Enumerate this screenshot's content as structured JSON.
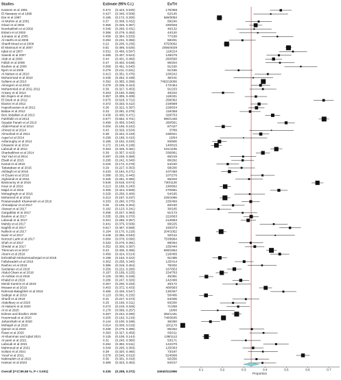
{
  "chart_data": {
    "type": "forest",
    "header": {
      "study": "Studies",
      "estimate": "Estimate (95% C.I.)",
      "events": "Ev/Trt"
    },
    "x_label": "Proportion",
    "xlim": [
      0,
      0.75
    ],
    "xticks": [
      0.1,
      0.2,
      0.3,
      0.4,
      0.5,
      0.6,
      0.7
    ],
    "color": "#111111",
    "ref_color": "#e06060",
    "diamond_color": "#7fd0d6",
    "overall": {
      "name": "Overall (I^2=99.58 %, P < 0.001)",
      "est": 0.335,
      "lo": 0.298,
      "hi": 0.372,
      "ci": "(0.298, 0.372)",
      "n": "34940/112996"
    },
    "studies": [
      {
        "name": "Kassem et al 1991",
        "est": 0.474,
        "lo": 0.423,
        "hi": 0.525,
        "ci": "(0.423, 0.525)",
        "n": "176/369"
      },
      {
        "name": "El-Nawawy et al 1996",
        "est": 0.427,
        "lo": 0.346,
        "hi": 0.508,
        "ci": "(0.346, 0.508)",
        "n": "62/145"
      },
      {
        "name": "Dar et al 1997",
        "est": 0.186,
        "lo": 0.172,
        "hi": 0.2,
        "ci": "(0.172, 0.200)",
        "n": "568/3053"
      },
      {
        "name": "Al-Muhim et al 2001",
        "est": 0.37,
        "lo": 0.308,
        "hi": 0.432,
        "ci": "(0.308, 0.432)",
        "n": "89/240"
      },
      {
        "name": "Ghazi et al 2002",
        "est": 0.356,
        "lo": 0.326,
        "hi": 0.387,
        "ci": "(0.326, 0.387)",
        "n": "330/926"
      },
      {
        "name": "Noorbakhsh et al 2002",
        "est": 0.349,
        "lo": 0.266,
        "hi": 0.431,
        "ci": "(0.266, 0.431)",
        "n": "46/132"
      },
      {
        "name": "Eslami et al 2003",
        "est": 0.366,
        "lo": 0.279,
        "hi": 0.453,
        "ci": "(0.279, 0.453)",
        "n": "44/120"
      },
      {
        "name": "Jumaian et al 2005",
        "est": 0.458,
        "lo": 0.384,
        "hi": 0.533,
        "ci": "(0.384, 0.533)",
        "n": "77/168"
      },
      {
        "name": "Al-Harthi et al 2006",
        "est": 0.294,
        "lo": 0.231,
        "hi": 0.356,
        "ci": "(0.231, 0.356)",
        "n": "59/201"
      },
      {
        "name": "Sharifi Mood et al 2006",
        "est": 0.22,
        "lo": 0.205,
        "hi": 0.235,
        "ci": "(0.205, 0.235)",
        "n": "675/3062"
      },
      {
        "name": "El Mansouri et al 2007",
        "est": 0.51,
        "lo": 0.495,
        "hi": 0.526,
        "ci": "(0.495, 0.526)",
        "n": "2056/4029"
      },
      {
        "name": "Iqbal et al 2007",
        "est": 0.531,
        "lo": 0.466,
        "hi": 0.597,
        "ci": "(0.466, 0.597)",
        "n": "119/224"
      },
      {
        "name": "Saeedi et al 2007",
        "est": 0.465,
        "lo": 0.407,
        "hi": 0.524,
        "ci": "(0.407, 0.524)",
        "n": "128/275"
      },
      {
        "name": "Abdi et al 2008",
        "est": 0.44,
        "lo": 0.401,
        "hi": 0.48,
        "ci": "(0.401, 0.480)",
        "n": "260/590"
      },
      {
        "name": "Fallah et al 2008",
        "est": 0.47,
        "lo": 0.402,
        "hi": 0.538,
        "ci": "(0.402, 0.538)",
        "n": "96/204"
      },
      {
        "name": "Ibrahim et al 2008",
        "est": 0.568,
        "lo": 0.491,
        "hi": 0.645,
        "ci": "(0.491, 0.645)",
        "n": "91/160"
      },
      {
        "name": "Njem et al 2009",
        "est": 0.276,
        "lo": 0.211,
        "hi": 0.341,
        "ci": "(0.211, 0.341)",
        "n": "51/185"
      },
      {
        "name": "Al-Nahari et al 2010",
        "est": 0.413,
        "lo": 0.351,
        "hi": 0.476,
        "ci": "(0.351, 0.476)",
        "n": "100/242"
      },
      {
        "name": "Mohammad et al 2010",
        "est": 0.345,
        "lo": 0.252,
        "hi": 0.438,
        "ci": "(0.252, 0.438)",
        "n": "35/101"
      },
      {
        "name": "Sellami et al 2010",
        "est": 0.392,
        "lo": 0.385,
        "hi": 0.399,
        "ci": "(0.385, 0.399)",
        "n": "7482/19066"
      },
      {
        "name": "Almogren et al 2010",
        "est": 0.379,
        "lo": 0.335,
        "hi": 0.424,
        "ci": "(0.335, 0.424)",
        "n": "172/454"
      },
      {
        "name": "Mohammed et al 2011 2011",
        "est": 0.39,
        "lo": 0.327,
        "hi": 0.453,
        "ci": "(0.327, 0.453)",
        "n": "91/233"
      },
      {
        "name": "Ansary et al 2012",
        "est": 0.203,
        "lo": 0.15,
        "hi": 0.256,
        "ci": "(0.150, 0.256)",
        "n": "45/222"
      },
      {
        "name": "Bin Dajem et al 2012",
        "est": 0.357,
        "lo": 0.305,
        "hi": 0.409,
        "ci": "(0.305, 0.409)",
        "n": "118/331"
      },
      {
        "name": "El Deeb et al 2012",
        "est": 0.675,
        "lo": 0.628,
        "hi": 0.722,
        "ci": "(0.628, 0.722)",
        "n": "258/382"
      },
      {
        "name": "Elamin et al 2012",
        "est": 0.372,
        "lo": 0.333,
        "hi": 0.412,
        "ci": "(0.333, 0.412)",
        "n": "219/589"
      },
      {
        "name": "Hapozlooeian et al 2012",
        "est": 0.36,
        "lo": 0.322,
        "hi": 0.397,
        "ci": "(0.322, 0.397)",
        "n": "228/634"
      },
      {
        "name": "Babae et al 2012",
        "est": 0.33,
        "lo": 0.281,
        "hi": 0.379,
        "ci": "(0.281, 0.379)",
        "n": "118/358"
      },
      {
        "name": "Ben Abdallah et al 2013",
        "est": 0.436,
        "lo": 0.4,
        "hi": 0.471,
        "ci": "(0.400, 0.471)",
        "n": "328/753"
      },
      {
        "name": "Fakhfakh et al 2013",
        "est": 0.677,
        "lo": 0.652,
        "hi": 0.701,
        "ci": "(0.652, 0.701)",
        "n": "980/1448"
      },
      {
        "name": "Siyadat Panah et al 2013",
        "est": 0.499,
        "lo": 0.458,
        "hi": 0.54,
        "ci": "(0.458, 0.540)",
        "n": "280/561"
      },
      {
        "name": "Abdel-Raouf et al 2014",
        "est": 0.204,
        "lo": 0.165,
        "hi": 0.242,
        "ci": "(0.165, 0.242)",
        "n": "87/427"
      },
      {
        "name": "Ahmed et al 2014",
        "est": 0.43,
        "lo": 0.326,
        "hi": 0.534,
        "ci": "(0.326, 0.534)",
        "n": "37/86"
      },
      {
        "name": "Almushait et al 2014",
        "est": 0.38,
        "lo": 0.342,
        "hi": 0.419,
        "ci": "(0.342, 0.419)",
        "n": "236/621"
      },
      {
        "name": "Aqeel et al 2014",
        "est": 0.299,
        "lo": 0.188,
        "hi": 0.41,
        "ci": "(0.188, 0.410)",
        "n": "19/64"
      },
      {
        "name": "Asfaroughy et al 2014",
        "est": 0.186,
        "lo": 0.152,
        "hi": 0.22,
        "ci": "(0.152, 0.220)",
        "n": "93/500"
      },
      {
        "name": "Ghasemi et al 2014",
        "est": 0.172,
        "lo": 0.146,
        "hi": 0.198,
        "ci": "(0.146, 0.198)",
        "n": "140/815"
      },
      {
        "name": "Laboudi et al 2014",
        "est": 0.453,
        "lo": 0.425,
        "hi": 0.481,
        "ci": "(0.425, 0.481)",
        "n": "541/1195"
      },
      {
        "name": "Sharbatkhori et al 2014",
        "est": 0.39,
        "lo": 0.357,
        "hi": 0.423,
        "ci": "(0.357, 0.423)",
        "n": "336/861"
      },
      {
        "name": "Yad Yad et al 2014",
        "est": 0.297,
        "lo": 0.236,
        "hi": 0.358,
        "ci": "(0.236, 0.358)",
        "n": "65/219"
      },
      {
        "name": "Elsafi et al 2015",
        "est": 0.295,
        "lo": 0.242,
        "hi": 0.348,
        "ci": "(0.242, 0.348)",
        "n": "86/292"
      },
      {
        "name": "Kamal et al 2015",
        "est": 0.225,
        "lo": 0.172,
        "hi": 0.278,
        "ci": "(0.172, 0.278)",
        "n": "54/240"
      },
      {
        "name": "Tabatabaei et al 2015",
        "est": 0.29,
        "lo": 0.227,
        "hi": 0.353,
        "ci": "(0.227, 0.353)",
        "n": "58/200"
      },
      {
        "name": "Akhlaghi et al 2016",
        "est": 0.233,
        "lo": 0.194,
        "hi": 0.271,
        "ci": "(0.194, 0.271)",
        "n": "107/460"
      },
      {
        "name": "Al-Eryani et al 2016",
        "est": 0.388,
        "lo": 0.331,
        "hi": 0.445,
        "ci": "(0.331, 0.445)",
        "n": "107/276"
      },
      {
        "name": "Alghamdi et al 2016",
        "est": 0.325,
        "lo": 0.261,
        "hi": 0.39,
        "ci": "(0.261, 0.390)",
        "n": "66/203"
      },
      {
        "name": "Bassoumy et al 2016",
        "est": 0.646,
        "lo": 0.618,
        "hi": 0.674,
        "ci": "(0.618, 0.674)",
        "n": "730/1130"
      },
      {
        "name": "Iman et al 2016",
        "est": 0.213,
        "lo": 0.186,
        "hi": 0.24,
        "ci": "(0.186, 0.240)",
        "n": "190/892"
      },
      {
        "name": "Majid et al 2016",
        "est": 0.465,
        "lo": 0.424,
        "hi": 0.506,
        "ci": "(0.424, 0.506)",
        "n": "270/581"
      },
      {
        "name": "Mohaghegh et al 2016",
        "est": 0.328,
        "lo": 0.256,
        "hi": 0.4,
        "ci": "(0.256, 0.400)",
        "n": "54/165"
      },
      {
        "name": "Mohamed et al 2016",
        "est": 0.212,
        "lo": 0.187,
        "hi": 0.237,
        "ci": "(0.187, 0.237)",
        "n": "226/1066"
      },
      {
        "name": "Rostamzadeh Khameneh et al 2016",
        "est": 0.333,
        "lo": 0.29,
        "hi": 0.375,
        "ci": "(0.290, 0.375)",
        "n": "155/466"
      },
      {
        "name": "Ahmadpour et al 2017",
        "est": 0.25,
        "lo": 0.196,
        "hi": 0.304,
        "ci": "(0.196, 0.304)",
        "n": "60/240"
      },
      {
        "name": "Alanazi et al 2017",
        "est": 0.182,
        "lo": 0.123,
        "hi": 0.241,
        "ci": "(0.123, 0.241)",
        "n": "30/165"
      },
      {
        "name": "Gargabbai et al 2017",
        "est": 0.295,
        "lo": 0.227,
        "hi": 0.363,
        "ci": "(0.227, 0.363)",
        "n": "51/173"
      },
      {
        "name": "Ibrahim et al 2017",
        "est": 0.335,
        "lo": 0.299,
        "hi": 0.37,
        "ci": "(0.299, 0.370)",
        "n": "222/663"
      },
      {
        "name": "Laboudi et al 2017",
        "est": 0.321,
        "lo": 0.286,
        "hi": 0.357,
        "ci": "(0.286, 0.357)",
        "n": "213/663"
      },
      {
        "name": "Mahdy et al 2017",
        "est": 0.441,
        "lo": 0.375,
        "hi": 0.506,
        "ci": "(0.375, 0.506)",
        "n": "99/225"
      },
      {
        "name": "Naghili et al 2017",
        "est": 0.517,
        "lo": 0.467,
        "hi": 0.568,
        "ci": "(0.467, 0.568)",
        "n": "193/373"
      },
      {
        "name": "Nallock et al 2017",
        "est": 0.194,
        "lo": 0.17,
        "hi": 0.218,
        "ci": "(0.170, 0.218)",
        "n": "204/1052"
      },
      {
        "name": "Nazir et al 2017",
        "est": 0.448,
        "lo": 0.356,
        "hi": 0.54,
        "ci": "(0.356, 0.540)",
        "n": "50/112"
      },
      {
        "name": "Noroozi Larki et al 2017",
        "est": 0.084,
        "lo": 0.078,
        "hi": 0.09,
        "ci": "(0.078, 0.090)",
        "n": "753/8964"
      },
      {
        "name": "Shah et al 2017",
        "est": 0.333,
        "lo": 0.276,
        "hi": 0.391,
        "ci": "(0.276, 0.391)",
        "n": "88/264"
      },
      {
        "name": "Shirdel et al 2017",
        "est": 0.352,
        "lo": 0.306,
        "hi": 0.397,
        "ci": "(0.306, 0.397)",
        "n": "155/440"
      },
      {
        "name": "Tlemcani et al 2017",
        "est": 0.43,
        "lo": 0.406,
        "hi": 0.455,
        "ci": "(0.406, 0.455)",
        "n": "669/1554"
      },
      {
        "name": "Aleem et al 2018",
        "est": 0.469,
        "lo": 0.424,
        "hi": 0.514,
        "ci": "(0.424, 0.514)",
        "n": "218/465"
      },
      {
        "name": "Eshrakhah Mohammadnejad et al 2018",
        "est": 0.188,
        "lo": 0.153,
        "hi": 0.222,
        "ci": "(0.153, 0.222)",
        "n": "91/485"
      },
      {
        "name": "Fallahzadeh et al 2018",
        "est": 0.302,
        "lo": 0.258,
        "hi": 0.346,
        "ci": "(0.258, 0.346)",
        "n": "125/414"
      },
      {
        "name": "Rashno et al 2018",
        "est": 0.386,
        "lo": 0.318,
        "hi": 0.454,
        "ci": "(0.318, 0.454)",
        "n": "78/202"
      },
      {
        "name": "Sardarian et al 2018",
        "est": 0.256,
        "lo": 0.222,
        "hi": 0.29,
        "ci": "(0.222, 0.290)",
        "n": "167/653"
      },
      {
        "name": "Abdul-Ghani et al 2019",
        "est": 0.197,
        "lo": 0.169,
        "hi": 0.225,
        "ci": "(0.169, 0.225)",
        "n": "154/783"
      },
      {
        "name": "Al-Ashkar et al 2019",
        "est": 0.125,
        "lo": 0.091,
        "hi": 0.158,
        "ci": "(0.091, 0.158)",
        "n": "45/361"
      },
      {
        "name": "Khalaf et al 2019",
        "est": 0.286,
        "lo": 0.247,
        "hi": 0.326,
        "ci": "(0.247, 0.326)",
        "n": "142/496"
      },
      {
        "name": "Meridi Kamimi et al 2019",
        "est": 0.267,
        "lo": 0.2,
        "hi": 0.333,
        "ci": "(0.200, 0.333)",
        "n": "46/172"
      },
      {
        "name": "Mosawi et al 2019",
        "est": 0.403,
        "lo": 0.372,
        "hi": 0.433,
        "ci": "(0.372, 0.433)",
        "n": "400/993"
      },
      {
        "name": "Rahmati-Balaghleh et al 2019",
        "est": 0.486,
        "lo": 0.426,
        "hi": 0.547,
        "ci": "(0.426, 0.547)",
        "n": "130/267"
      },
      {
        "name": "Sadiqui et al 2019",
        "est": 0.123,
        "lo": 0.091,
        "hi": 0.155,
        "ci": "(0.091, 0.155)",
        "n": "50/406"
      },
      {
        "name": "Sharifi et al 2019",
        "est": 0.31,
        "lo": 0.247,
        "hi": 0.373,
        "ci": "(0.247, 0.373)",
        "n": "64/206"
      },
      {
        "name": "Abdelbary et al 2020",
        "est": 0.25,
        "lo": 0.189,
        "hi": 0.311,
        "ci": "(0.189, 0.311)",
        "n": "50/200"
      },
      {
        "name": "Al-Hakami et al 2020",
        "est": 0.274,
        "lo": 0.219,
        "hi": 0.329,
        "ci": "(0.219, 0.329)",
        "n": "71/259"
      },
      {
        "name": "Al et al 2020",
        "est": 0.178,
        "lo": 0.099,
        "hi": 0.257,
        "ci": "(0.099, 0.257)",
        "n": "16/90"
      },
      {
        "name": "Edrees and Ibrahim 2020",
        "est": 0.267,
        "lo": 0.244,
        "hi": 0.29,
        "ci": "(0.244, 0.290)",
        "n": "382/1431"
      },
      {
        "name": "Hoummadi et al 2020",
        "est": 0.205,
        "lo": 0.192,
        "hi": 0.218,
        "ci": "(0.192, 0.218)",
        "n": "748/3645"
      },
      {
        "name": "Jahanshahi et al 2020",
        "est": 0.144,
        "lo": 0.1,
        "hi": 0.189,
        "ci": "(0.100, 0.189)",
        "n": "36/250"
      },
      {
        "name": "Mohajeli et al 2020",
        "est": 0.014,
        "lo": 0.008,
        "hi": 0.019,
        "ci": "(0.008, 0.019)",
        "n": "16/1170"
      },
      {
        "name": "Qamer et al 2020",
        "est": 0.338,
        "lo": 0.279,
        "hi": 0.396,
        "ci": "(0.279, 0.396)",
        "n": "85/252"
      },
      {
        "name": "Rassi et al 2020",
        "est": 0.393,
        "lo": 0.327,
        "hi": 0.459,
        "ci": "(0.327, 0.459)",
        "n": "83/211"
      },
      {
        "name": "Al-shamman and Iqbal 2021",
        "est": 0.125,
        "lo": 0.106,
        "hi": 0.144,
        "ci": "(0.106, 0.144)",
        "n": "139/1112"
      },
      {
        "name": "Al-yami et al 2021",
        "est": 0.31,
        "lo": 0.24,
        "hi": 0.38,
        "ci": "(0.240, 0.380)",
        "n": "53/171"
      },
      {
        "name": "Laboudi et al 2021",
        "est": 0.452,
        "lo": 0.392,
        "hi": 0.511,
        "ci": "(0.392, 0.511)",
        "n": "122/270"
      },
      {
        "name": "Mahmoud et al 2021",
        "est": 0.344,
        "lo": 0.295,
        "hi": 0.393,
        "ci": "(0.295, 0.393)",
        "n": "125/363"
      },
      {
        "name": "Soltani et al 2021",
        "est": 0.39,
        "lo": 0.32,
        "hi": 0.46,
        "ci": "(0.320, 0.460)",
        "n": "73/187"
      },
      {
        "name": "Yusuf et al 2021",
        "est": 0.578,
        "lo": 0.546,
        "hi": 0.61,
        "ci": "(0.546, 0.610)",
        "n": "524/906"
      },
      {
        "name": "Nabizadeh et al 2022",
        "est": 0.36,
        "lo": 0.301,
        "hi": 0.419,
        "ci": "(0.301, 0.419)",
        "n": "92/256"
      },
      {
        "name": "Hassan et al 2023",
        "est": 0.388,
        "lo": 0.323,
        "hi": 0.452,
        "ci": "(0.323, 0.452)",
        "n": "84/217"
      }
    ]
  }
}
